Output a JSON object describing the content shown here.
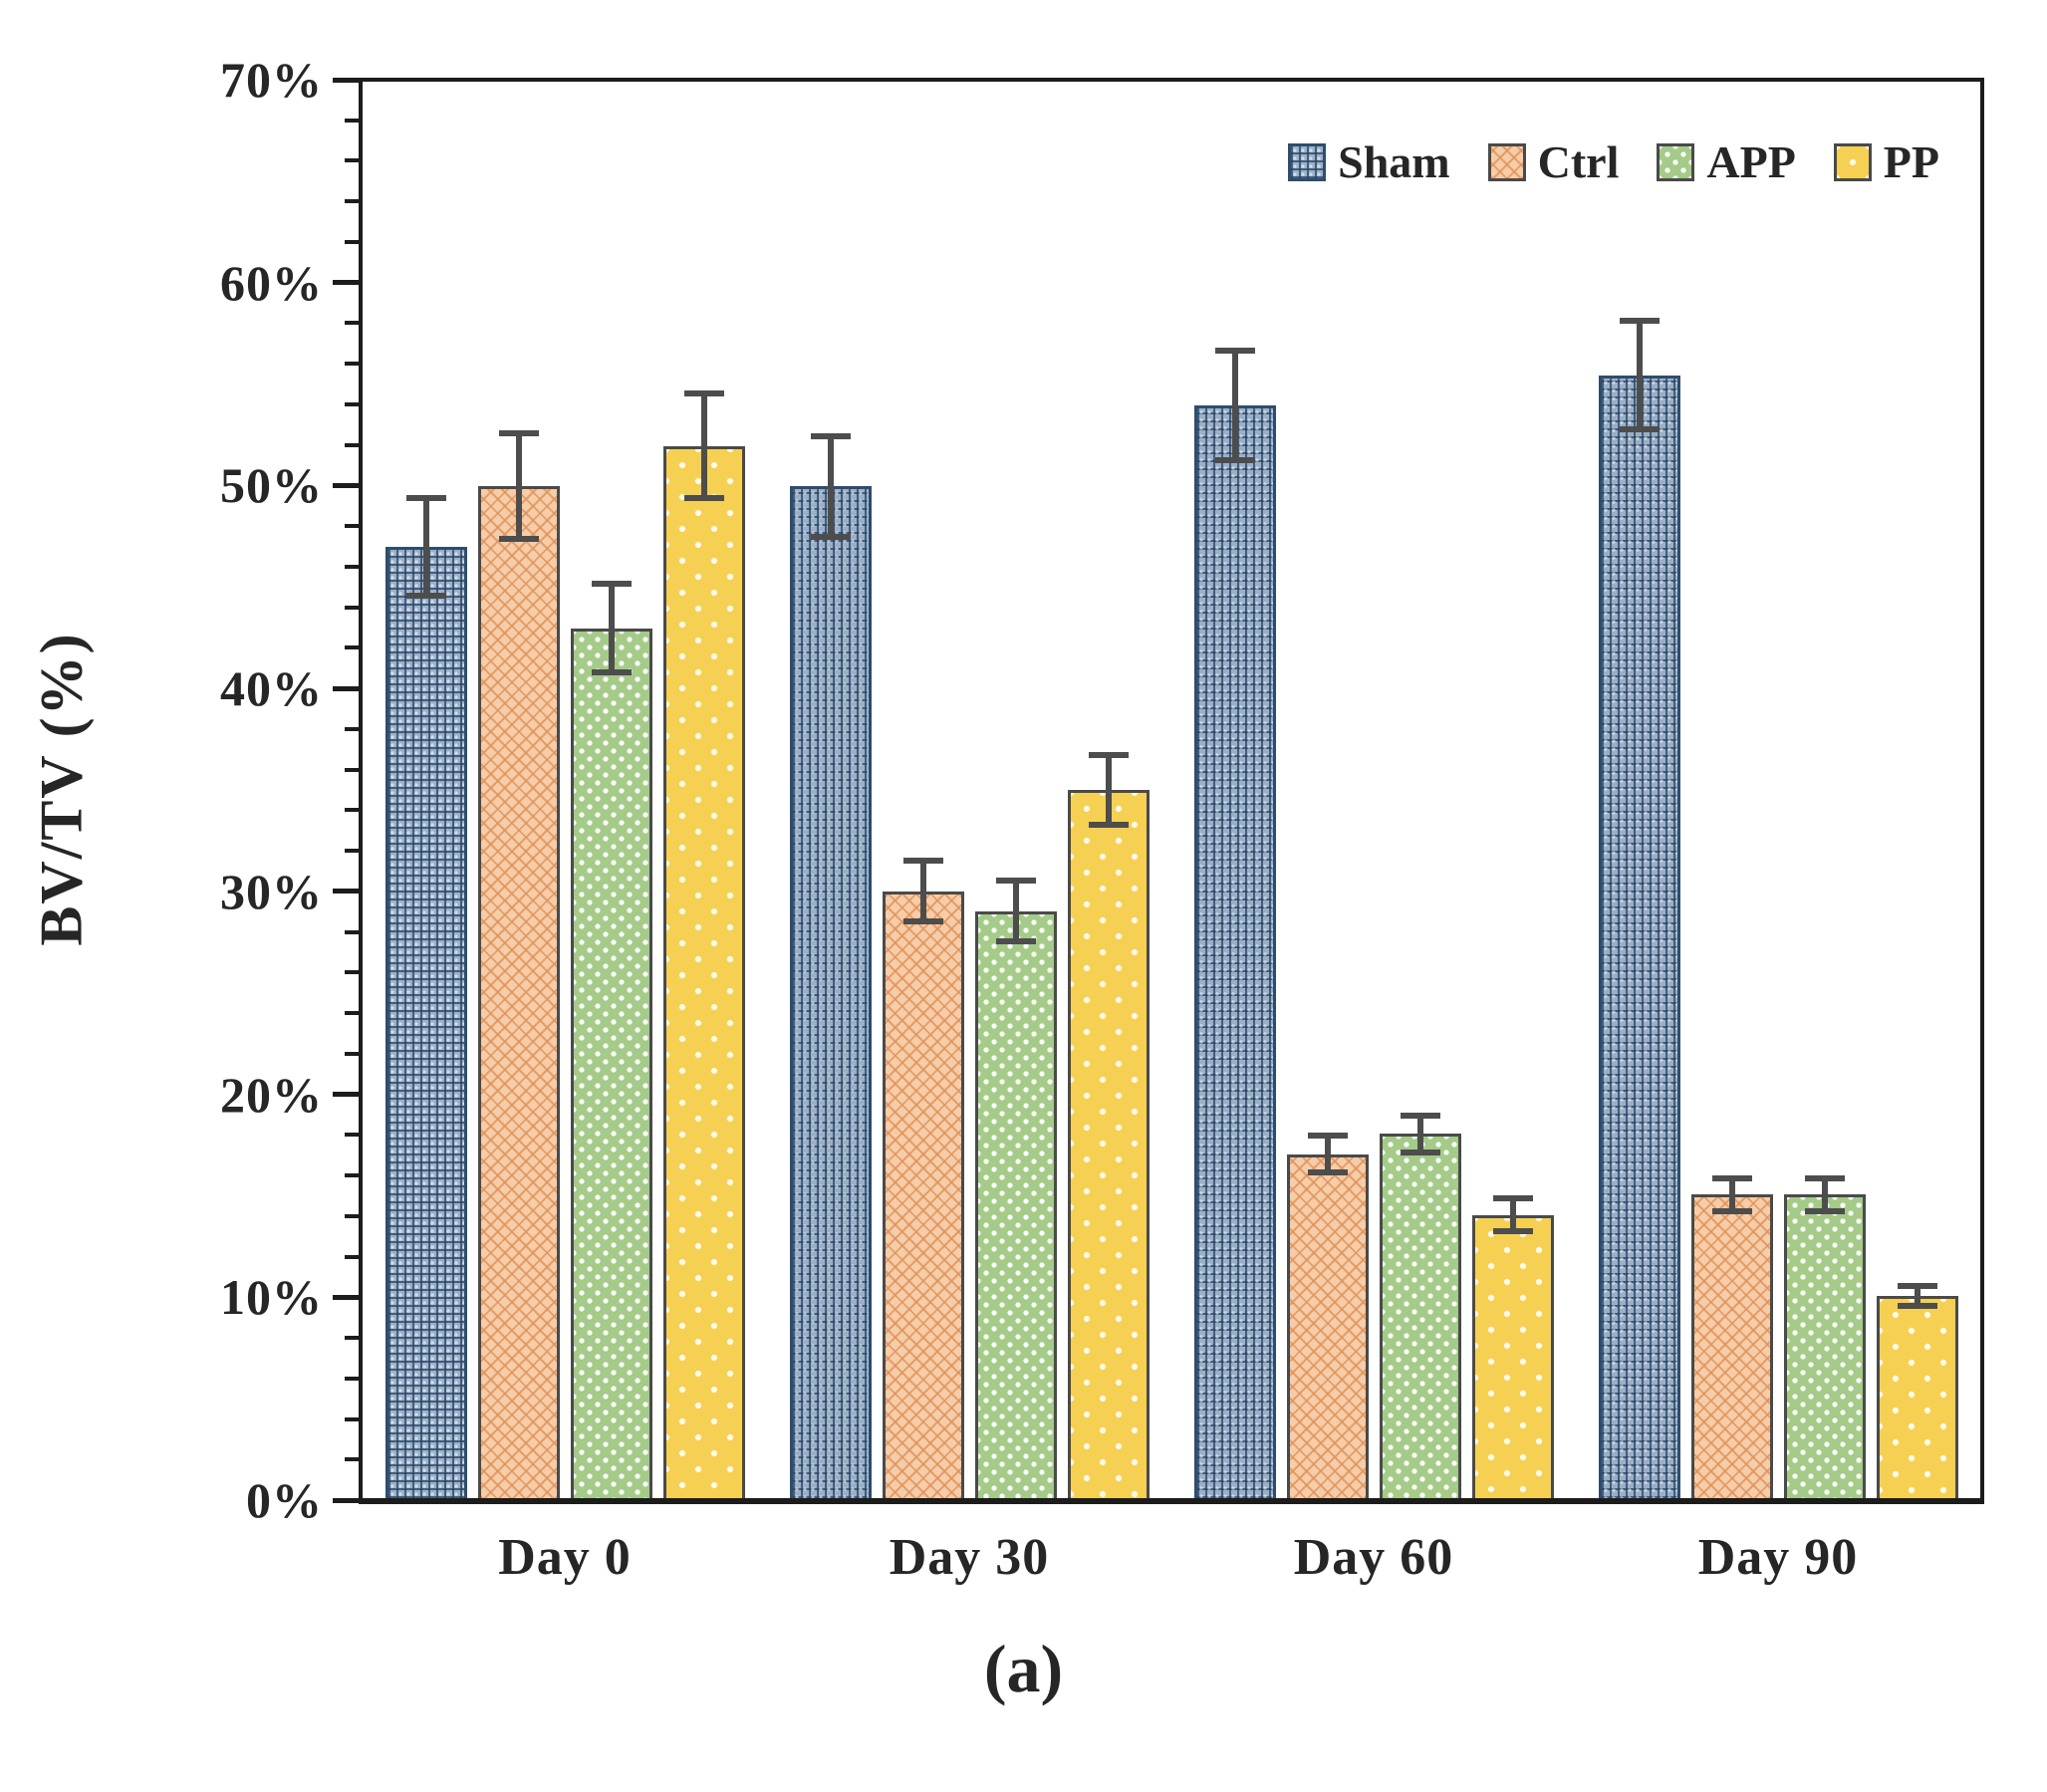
{
  "figure": {
    "caption": "(a)",
    "legend_position": "top-right"
  },
  "chart_data": {
    "type": "bar",
    "title": "",
    "xlabel": "",
    "ylabel": "BV/TV (%)",
    "categories": [
      "Day 0",
      "Day 30",
      "Day 60",
      "Day 90"
    ],
    "series": [
      {
        "name": "Sham",
        "color": "#9bb0c7",
        "pattern": "blue-grid",
        "values": [
          47,
          50,
          54,
          55.5
        ],
        "errors": [
          2.4,
          2.5,
          2.7,
          2.7
        ]
      },
      {
        "name": "Ctrl",
        "color": "#f6cda8",
        "pattern": "orange-lattice",
        "values": [
          50,
          30,
          17,
          15
        ],
        "errors": [
          2.6,
          1.5,
          0.9,
          0.8
        ]
      },
      {
        "name": "APP",
        "color": "#a4cb88",
        "pattern": "green-dots",
        "values": [
          43,
          29,
          18,
          15
        ],
        "errors": [
          2.2,
          1.5,
          0.9,
          0.8
        ]
      },
      {
        "name": "PP",
        "color": "#f6d052",
        "pattern": "yellow-dots",
        "values": [
          52,
          35,
          14,
          10
        ],
        "errors": [
          2.6,
          1.7,
          0.8,
          0.5
        ]
      }
    ],
    "ylim": [
      0,
      70
    ],
    "y_major_step": 10,
    "y_minor_step": 2,
    "y_tick_labels": [
      "0%",
      "10%",
      "20%",
      "30%",
      "40%",
      "50%",
      "60%",
      "70%"
    ],
    "grid": false,
    "error_bars": true,
    "legend": [
      "Sham",
      "Ctrl",
      "APP",
      "PP"
    ]
  }
}
